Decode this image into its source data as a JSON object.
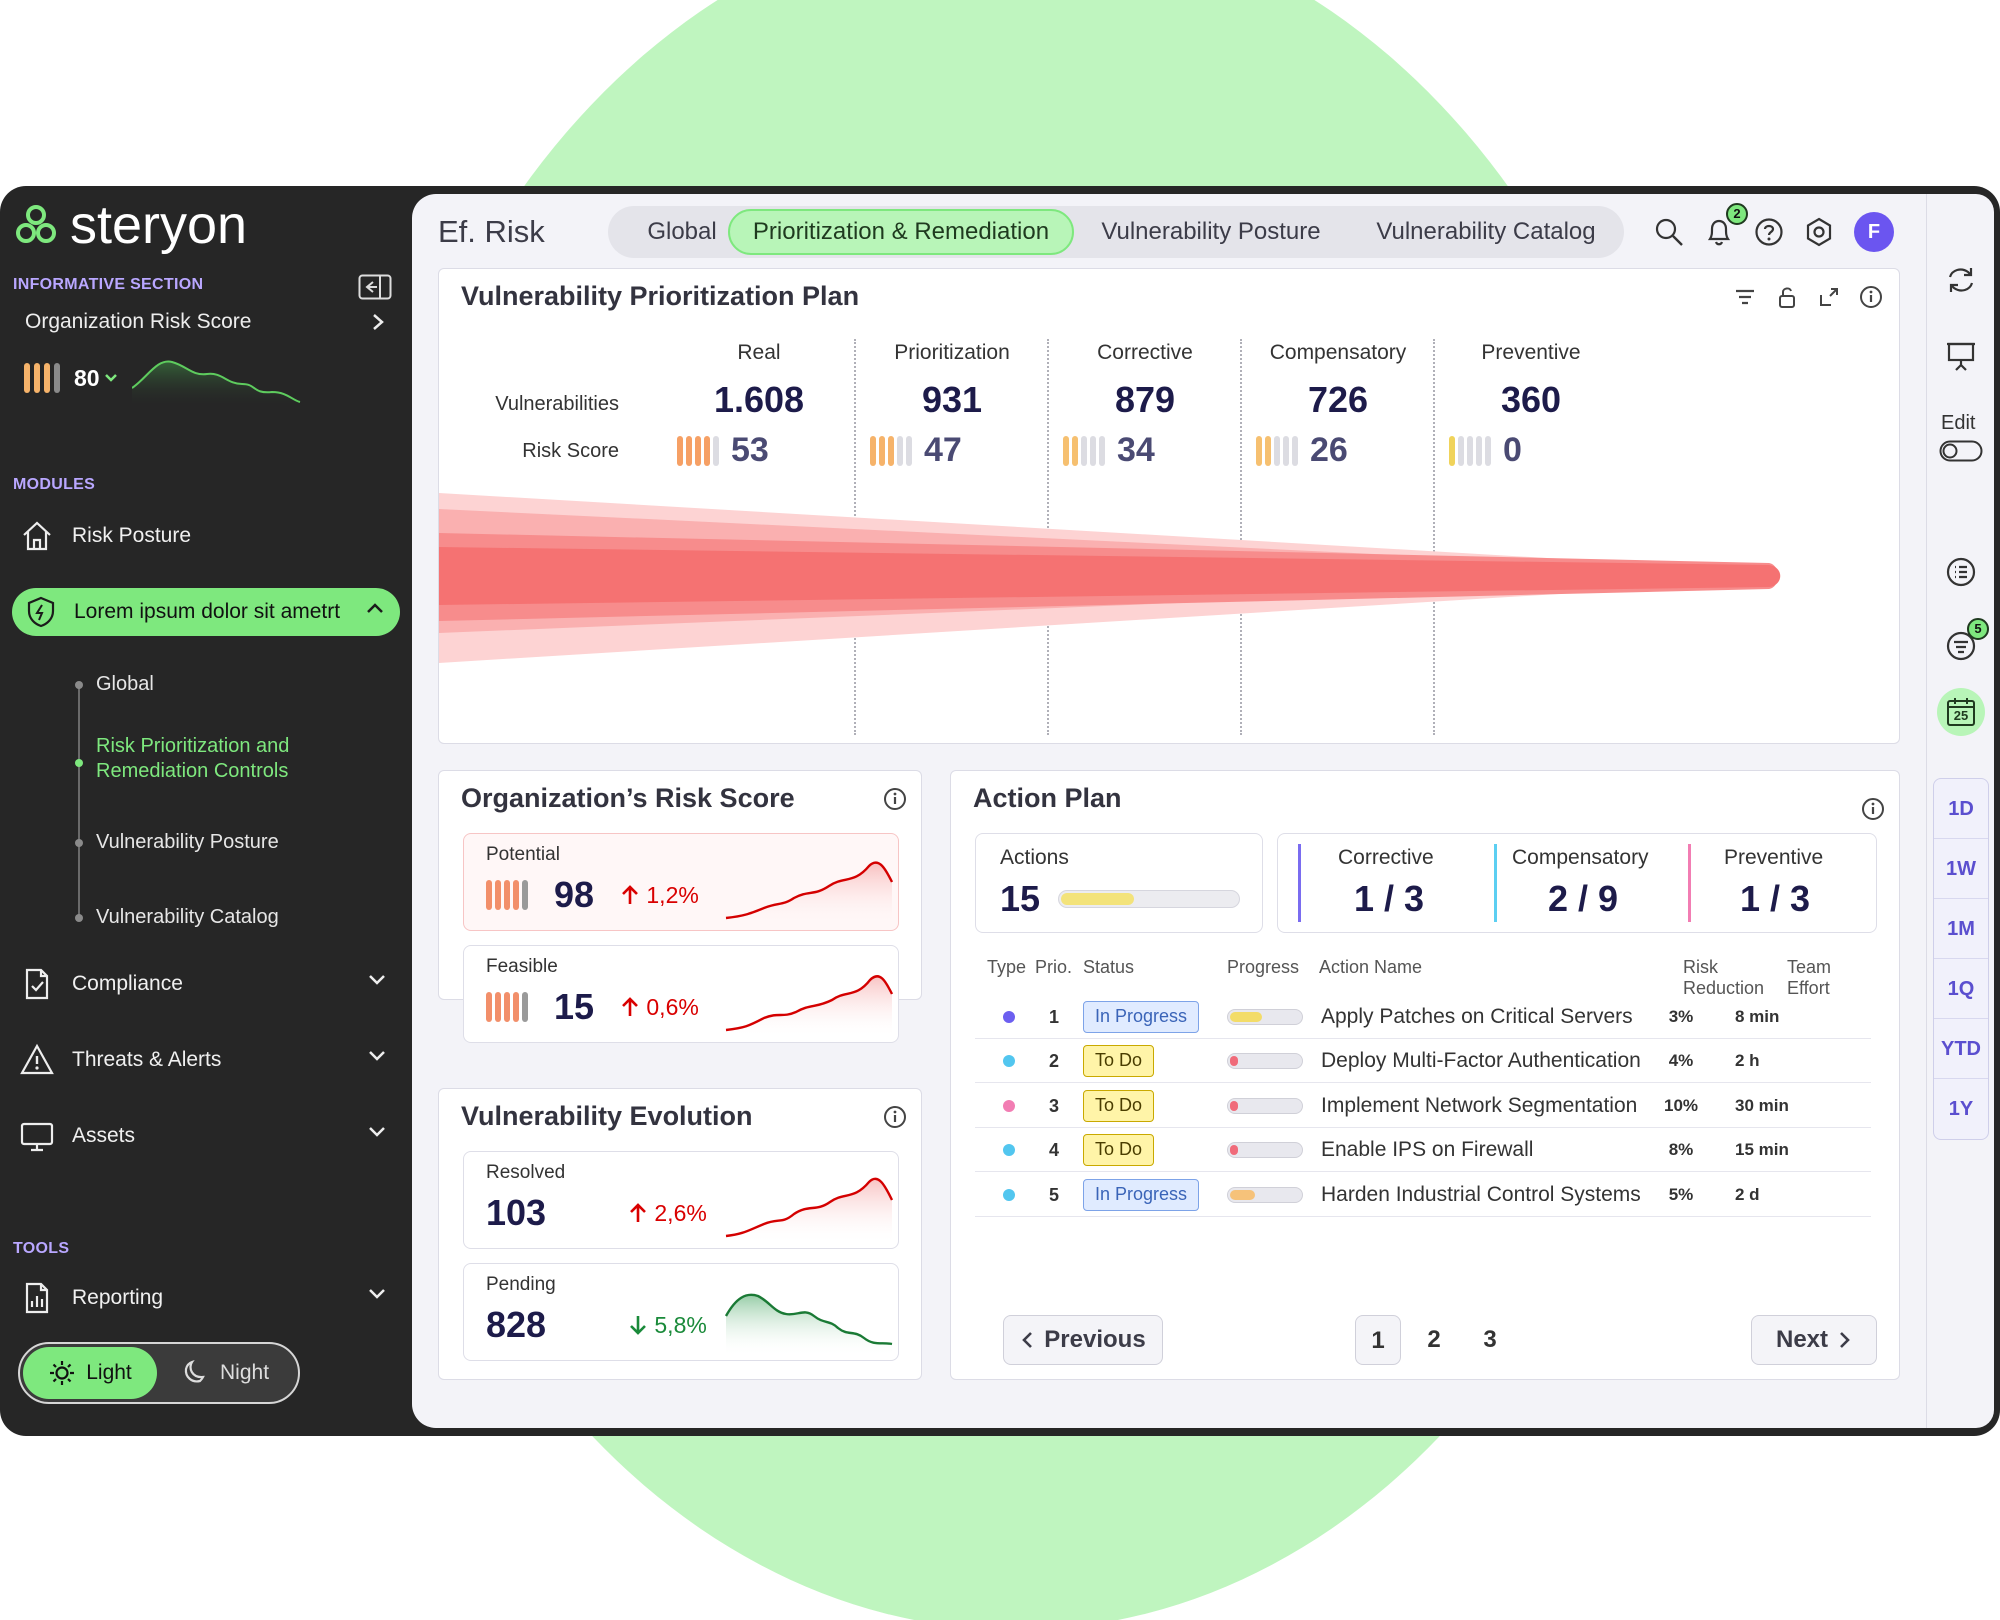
{
  "brand": {
    "name": "steryon"
  },
  "sidebar": {
    "informative_label": "INFORMATIVE SECTION",
    "org_risk_label": "Organization Risk Score",
    "org_risk_value": "80",
    "modules_label": "MODULES",
    "risk_posture": "Risk Posture",
    "active_module": "Lorem ipsum dolor sit ametrt",
    "sub_items": [
      "Global",
      "Risk Prioritization and Remediation Controls",
      "Vulnerability Posture",
      "Vulnerability Catalog"
    ],
    "compliance": "Compliance",
    "threats": "Threats & Alerts",
    "assets": "Assets",
    "tools_label": "TOOLS",
    "reporting": "Reporting",
    "theme_light": "Light",
    "theme_night": "Night"
  },
  "header": {
    "title": "Ef. Risk",
    "tabs": [
      "Global",
      "Prioritization & Remediation",
      "Vulnerability Posture",
      "Vulnerability Catalog"
    ],
    "notification_count": "2",
    "avatar_initial": "F"
  },
  "plan": {
    "title": "Vulnerability Prioritization Plan",
    "row_vulnerabilities": "Vulnerabilities",
    "row_risk_score": "Risk Score",
    "stages": [
      {
        "name": "Real",
        "vulnerabilities": "1.608",
        "risk_score": "53",
        "level": 4
      },
      {
        "name": "Prioritization",
        "vulnerabilities": "931",
        "risk_score": "47",
        "level": 3
      },
      {
        "name": "Corrective",
        "vulnerabilities": "879",
        "risk_score": "34",
        "level": 2
      },
      {
        "name": "Compensatory",
        "vulnerabilities": "726",
        "risk_score": "26",
        "level": 2
      },
      {
        "name": "Preventive",
        "vulnerabilities": "360",
        "risk_score": "0",
        "level": 1
      }
    ]
  },
  "org_risk": {
    "title": "Organization’s Risk Score",
    "potential_label": "Potential",
    "potential_value": "98",
    "potential_delta": "1,2%",
    "feasible_label": "Feasible",
    "feasible_value": "15",
    "feasible_delta": "0,6%"
  },
  "evolution": {
    "title": "Vulnerability Evolution",
    "resolved_label": "Resolved",
    "resolved_value": "103",
    "resolved_delta": "2,6%",
    "pending_label": "Pending",
    "pending_value": "828",
    "pending_delta": "5,8%"
  },
  "action_plan": {
    "title": "Action Plan",
    "actions_label": "Actions",
    "actions_value": "15",
    "actions_progress": 0.5,
    "corrective_label": "Corrective",
    "corrective_value": "1 / 3",
    "compensatory_label": "Compensatory",
    "compensatory_value": "2 / 9",
    "preventive_label": "Preventive",
    "preventive_value": "1 / 3",
    "headers": {
      "type": "Type",
      "prio": "Prio.",
      "status": "Status",
      "progress": "Progress",
      "name": "Action Name",
      "risk_reduction": "Risk Reduction",
      "team_effort": "Team Effort"
    },
    "rows": [
      {
        "type_color": "#6c5ff0",
        "prio": "1",
        "status": "In Progress",
        "status_kind": "inprog",
        "progress": 0.45,
        "progress_color": "#f3dc68",
        "name": "Apply Patches on Critical Servers",
        "risk_reduction": "3%",
        "team_effort": "8 min"
      },
      {
        "type_color": "#52c6ef",
        "prio": "2",
        "status": "To Do",
        "status_kind": "todo",
        "progress": 0.12,
        "progress_color": "#f06b7a",
        "name": "Deploy Multi-Factor Authentication",
        "risk_reduction": "4%",
        "team_effort": "2 h"
      },
      {
        "type_color": "#f27db3",
        "prio": "3",
        "status": "To Do",
        "status_kind": "todo",
        "progress": 0.12,
        "progress_color": "#f06b7a",
        "name": "Implement Network Segmentation",
        "risk_reduction": "10%",
        "team_effort": "30 min"
      },
      {
        "type_color": "#52c6ef",
        "prio": "4",
        "status": "To Do",
        "status_kind": "todo",
        "progress": 0.12,
        "progress_color": "#f06b7a",
        "name": "Enable IPS on Firewall",
        "risk_reduction": "8%",
        "team_effort": "15 min"
      },
      {
        "type_color": "#52c6ef",
        "prio": "5",
        "status": "In Progress",
        "status_kind": "inprog",
        "progress": 0.35,
        "progress_color": "#f6c27a",
        "name": "Harden Industrial Control Systems",
        "risk_reduction": "5%",
        "team_effort": "2 d"
      }
    ],
    "previous": "Previous",
    "next": "Next",
    "pages": [
      "1",
      "2",
      "3"
    ]
  },
  "rail": {
    "edit_label": "Edit",
    "filter_count": "5",
    "calendar_day": "25",
    "ranges": [
      "1D",
      "1W",
      "1M",
      "1Q",
      "YTD",
      "1Y"
    ]
  },
  "colors": {
    "accent": "#7ee87e",
    "purple": "#6b55f0",
    "danger": "#d90000",
    "success": "#1a8a3a"
  }
}
